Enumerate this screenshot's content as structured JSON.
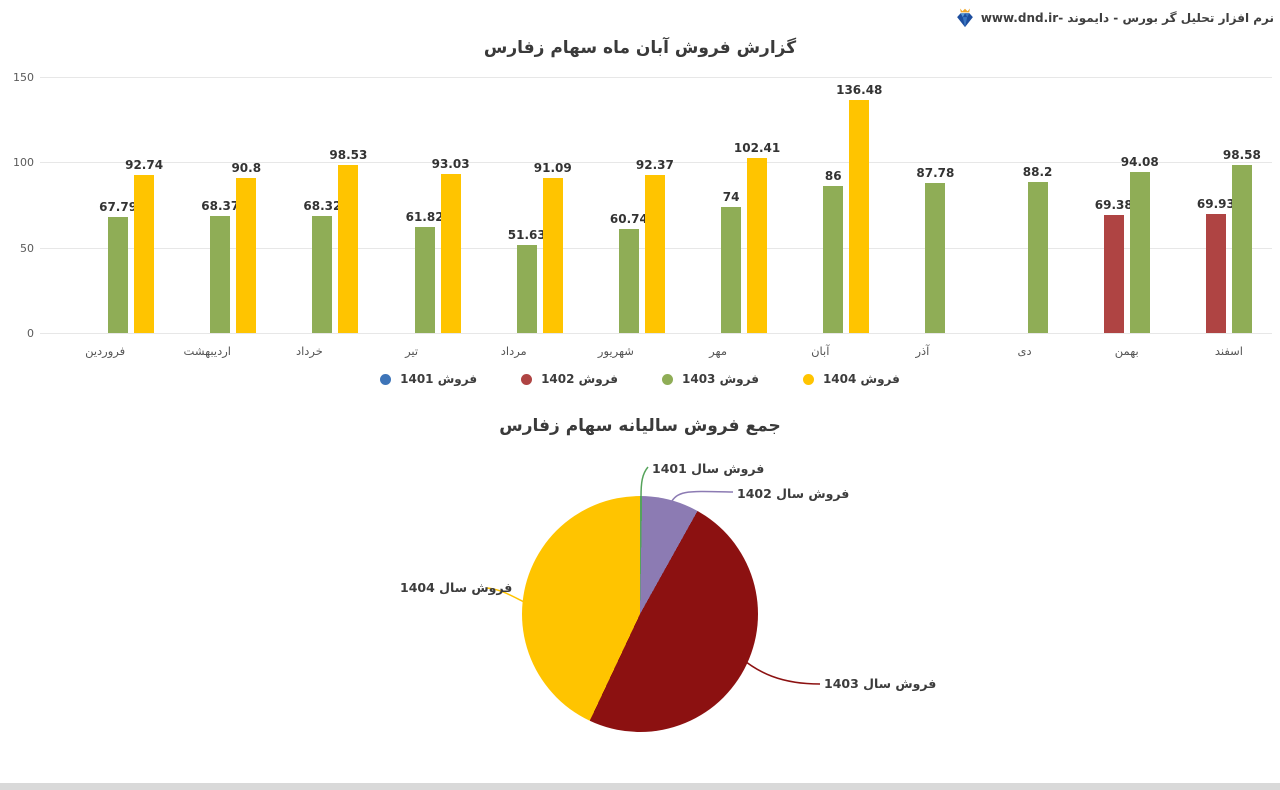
{
  "header": {
    "brand_text": "نرم افزار تحلیل گر بورس - دایموند -www.dnd.ir",
    "brand_icon": "diamond-with-crown-icon",
    "icon_colors": {
      "diamond": "#1d4e9e",
      "facet": "#5b9bd5",
      "crown": "#f0a62a"
    }
  },
  "chart_data": [
    {
      "type": "bar",
      "title": "گزارش فروش آبان ماه سهام زفارس",
      "ylim": [
        0,
        150
      ],
      "y_ticks": [
        0,
        50,
        100,
        150
      ],
      "grid": true,
      "legend_position": "bottom",
      "categories": [
        "فروردین",
        "اردیبهشت",
        "خرداد",
        "تیر",
        "مرداد",
        "شهریور",
        "مهر",
        "آبان",
        "آذر",
        "دی",
        "بهمن",
        "اسفند"
      ],
      "series": [
        {
          "name": "فروش 1401",
          "color": "#3d74b8",
          "values": [
            null,
            null,
            null,
            null,
            null,
            null,
            null,
            null,
            null,
            null,
            null,
            null
          ]
        },
        {
          "name": "فروش 1402",
          "color": "#af4443",
          "values": [
            null,
            null,
            null,
            null,
            null,
            null,
            null,
            null,
            null,
            null,
            69.38,
            69.93
          ]
        },
        {
          "name": "فروش 1403",
          "color": "#8fad56",
          "values": [
            67.79,
            68.37,
            68.32,
            61.82,
            51.63,
            60.74,
            74,
            86,
            87.78,
            88.2,
            94.08,
            98.58
          ]
        },
        {
          "name": "فروش 1404",
          "color": "#ffc400",
          "values": [
            92.74,
            90.8,
            98.53,
            93.03,
            91.09,
            92.37,
            102.41,
            136.48,
            null,
            null,
            null,
            null
          ]
        }
      ]
    },
    {
      "type": "pie",
      "title": "جمع فروش سالیانه سهام زفارس",
      "slices": [
        {
          "label": "فروش سال 1401",
          "color": "#55a35a",
          "pct_estimated": 0.3
        },
        {
          "label": "فروش سال 1402",
          "color": "#8c7bb3",
          "pct_estimated": 7.8
        },
        {
          "label": "فروش سال 1403",
          "color": "#8c1111",
          "pct_estimated": 48.9
        },
        {
          "label": "فروش سال 1404",
          "color": "#ffc400",
          "pct_estimated": 43.0
        }
      ]
    }
  ]
}
